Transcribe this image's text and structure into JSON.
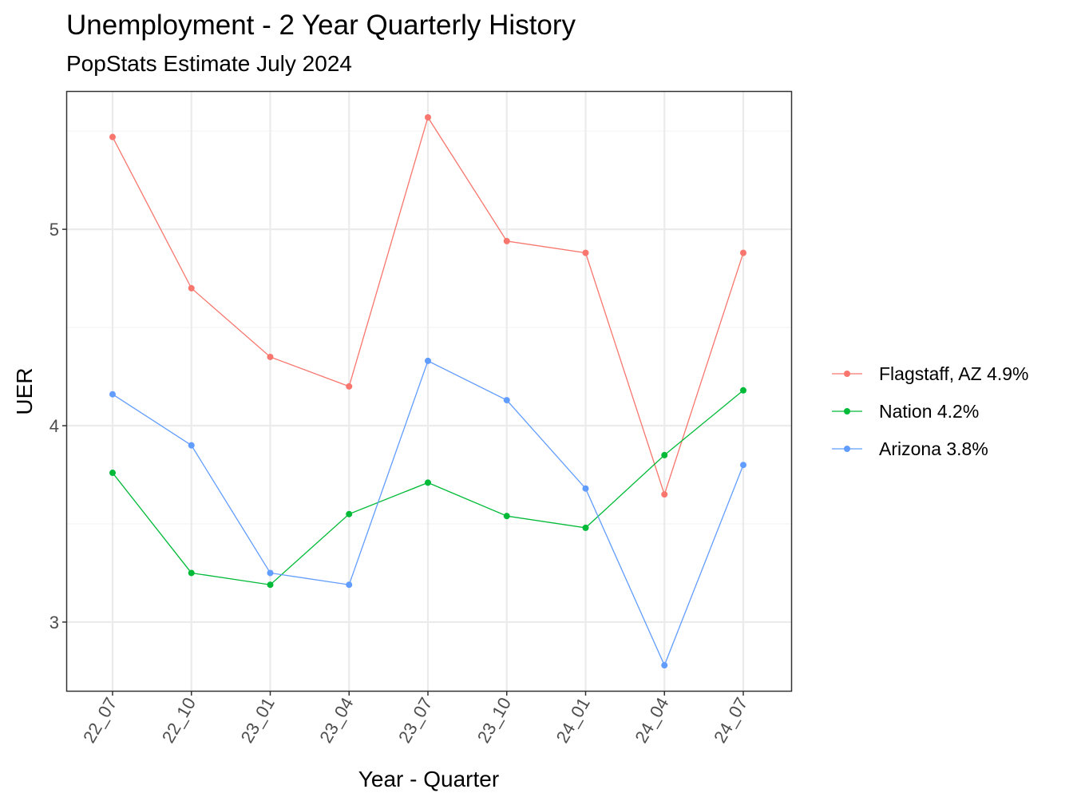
{
  "chart_data": {
    "type": "line",
    "title": "Unemployment - 2 Year Quarterly History",
    "subtitle": "PopStats Estimate July 2024",
    "xlabel": "Year - Quarter",
    "ylabel": "UER",
    "categories": [
      "22_07",
      "22_10",
      "23_01",
      "23_04",
      "23_07",
      "23_10",
      "24_01",
      "24_04",
      "24_07"
    ],
    "y_ticks": [
      3,
      4,
      5
    ],
    "ylim": [
      2.65,
      5.7
    ],
    "grid": true,
    "legend_position": "right",
    "series": [
      {
        "name": "Flagstaff, AZ 4.9%",
        "color": "#F8766D",
        "values": [
          5.47,
          4.7,
          4.35,
          4.2,
          5.57,
          4.94,
          4.88,
          3.65,
          4.88
        ]
      },
      {
        "name": "Nation 4.2%",
        "color": "#00BA38",
        "values": [
          3.76,
          3.25,
          3.19,
          3.55,
          3.71,
          3.54,
          3.48,
          3.85,
          4.18
        ]
      },
      {
        "name": "Arizona 3.8%",
        "color": "#619CFF",
        "values": [
          4.16,
          3.9,
          3.25,
          3.19,
          4.33,
          4.13,
          3.68,
          2.78,
          3.8
        ]
      }
    ]
  }
}
